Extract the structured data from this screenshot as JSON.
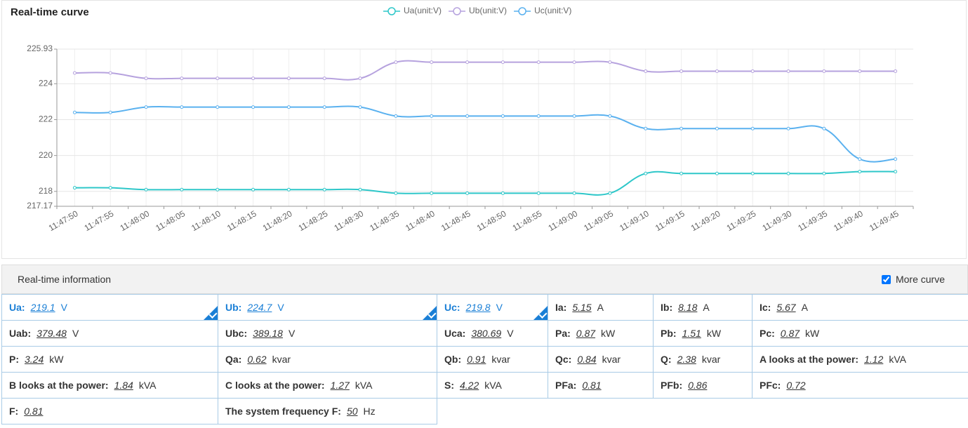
{
  "chart_data": {
    "type": "line",
    "title": "Real-time curve",
    "categories": [
      "11:47:50",
      "11:47:55",
      "11:48:00",
      "11:48:05",
      "11:48:10",
      "11:48:15",
      "11:48:20",
      "11:48:25",
      "11:48:30",
      "11:48:35",
      "11:48:40",
      "11:48:45",
      "11:48:50",
      "11:48:55",
      "11:49:00",
      "11:49:05",
      "11:49:10",
      "11:49:15",
      "11:49:20",
      "11:49:25",
      "11:49:30",
      "11:49:35",
      "11:49:40",
      "11:49:45"
    ],
    "series": [
      {
        "name": "Ua(unit:V)",
        "color": "#2ec7c9",
        "values": [
          218.2,
          218.2,
          218.1,
          218.1,
          218.1,
          218.1,
          218.1,
          218.1,
          218.1,
          217.9,
          217.9,
          217.9,
          217.9,
          217.9,
          217.9,
          217.9,
          219.0,
          219.0,
          219.0,
          219.0,
          219.0,
          219.0,
          219.1,
          219.1
        ]
      },
      {
        "name": "Ub(unit:V)",
        "color": "#b6a2de",
        "values": [
          224.6,
          224.6,
          224.3,
          224.3,
          224.3,
          224.3,
          224.3,
          224.3,
          224.3,
          225.2,
          225.2,
          225.2,
          225.2,
          225.2,
          225.2,
          225.2,
          224.7,
          224.7,
          224.7,
          224.7,
          224.7,
          224.7,
          224.7,
          224.7
        ]
      },
      {
        "name": "Uc(unit:V)",
        "color": "#5ab1ef",
        "values": [
          222.4,
          222.4,
          222.7,
          222.7,
          222.7,
          222.7,
          222.7,
          222.7,
          222.7,
          222.2,
          222.2,
          222.2,
          222.2,
          222.2,
          222.2,
          222.2,
          221.5,
          221.5,
          221.5,
          221.5,
          221.5,
          221.5,
          219.8,
          219.8
        ]
      }
    ],
    "ylim": [
      217.17,
      225.93
    ],
    "yticks": [
      217.17,
      218,
      220,
      222,
      224,
      225.93
    ],
    "grid": true,
    "smooth": true
  },
  "info": {
    "title": "Real-time information",
    "more_curve": {
      "label": "More curve",
      "checked": true
    },
    "rows": [
      [
        {
          "label": "Ua:",
          "value": "219.1",
          "unit": "V",
          "selected": true
        },
        {
          "label": "Ub:",
          "value": "224.7",
          "unit": "V",
          "selected": true
        },
        {
          "label": "Uc:",
          "value": "219.8",
          "unit": "V",
          "selected": true
        },
        {
          "label": "Ia:",
          "value": "5.15",
          "unit": "A"
        },
        {
          "label": "Ib:",
          "value": "8.18",
          "unit": "A"
        },
        {
          "label": "Ic:",
          "value": "5.67",
          "unit": "A"
        }
      ],
      [
        {
          "label": "Uab:",
          "value": "379.48",
          "unit": "V"
        },
        {
          "label": "Ubc:",
          "value": "389.18",
          "unit": "V"
        },
        {
          "label": "Uca:",
          "value": "380.69",
          "unit": "V"
        },
        {
          "label": "Pa:",
          "value": "0.87",
          "unit": "kW"
        },
        {
          "label": "Pb:",
          "value": "1.51",
          "unit": "kW"
        },
        {
          "label": "Pc:",
          "value": "0.87",
          "unit": "kW"
        }
      ],
      [
        {
          "label": "P:",
          "value": "3.24",
          "unit": "kW"
        },
        {
          "label": "Qa:",
          "value": "0.62",
          "unit": "kvar"
        },
        {
          "label": "Qb:",
          "value": "0.91",
          "unit": "kvar"
        },
        {
          "label": "Qc:",
          "value": "0.84",
          "unit": "kvar"
        },
        {
          "label": "Q:",
          "value": "2.38",
          "unit": "kvar"
        },
        {
          "label": "A looks at the power:",
          "value": "1.12",
          "unit": "kVA"
        }
      ],
      [
        {
          "label": "B looks at the power:",
          "value": "1.84",
          "unit": "kVA"
        },
        {
          "label": "C looks at the power:",
          "value": "1.27",
          "unit": "kVA"
        },
        {
          "label": "S:",
          "value": "4.22",
          "unit": "kVA"
        },
        {
          "label": "PFa:",
          "value": "0.81"
        },
        {
          "label": "PFb:",
          "value": "0.86"
        },
        {
          "label": "PFc:",
          "value": "0.72"
        }
      ],
      [
        {
          "label": "F:",
          "value": "0.81"
        },
        {
          "label": "The system frequency F:",
          "value": "50",
          "unit": "Hz"
        }
      ]
    ]
  }
}
